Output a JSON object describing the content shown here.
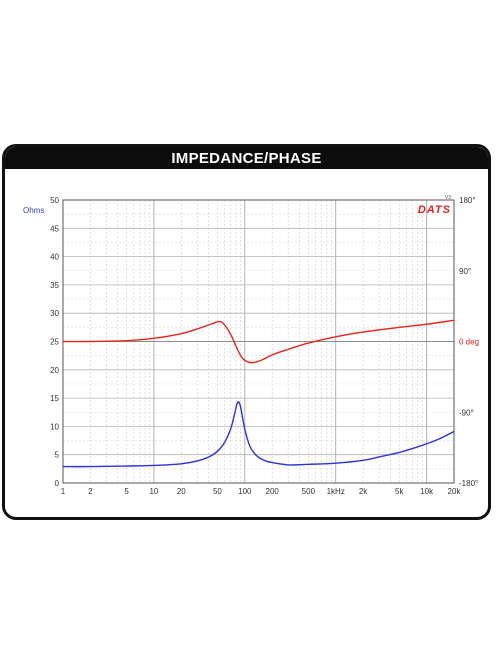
{
  "header": {
    "title": "IMPEDANCE/PHASE"
  },
  "chart_data": {
    "type": "line",
    "xscale": "log",
    "xlim": [
      1,
      20000
    ],
    "x_ticks": [
      {
        "value": 1,
        "label": "1"
      },
      {
        "value": 2,
        "label": "2"
      },
      {
        "value": 5,
        "label": "5"
      },
      {
        "value": 10,
        "label": "10"
      },
      {
        "value": 20,
        "label": "20"
      },
      {
        "value": 50,
        "label": "50"
      },
      {
        "value": 100,
        "label": "100"
      },
      {
        "value": 200,
        "label": "200"
      },
      {
        "value": 500,
        "label": "500"
      },
      {
        "value": 1000,
        "label": "1kHz"
      },
      {
        "value": 2000,
        "label": "2k"
      },
      {
        "value": 5000,
        "label": "5k"
      },
      {
        "value": 10000,
        "label": "10k"
      },
      {
        "value": 20000,
        "label": "20k"
      }
    ],
    "ylabel": "Ohms",
    "ylim": [
      0,
      50
    ],
    "y_ticks": [
      0,
      5,
      10,
      15,
      20,
      25,
      30,
      35,
      40,
      45,
      50
    ],
    "y2lim": [
      -180,
      180
    ],
    "y2_ticks": [
      {
        "value": 180,
        "label": "180°"
      },
      {
        "value": 90,
        "label": "90°"
      },
      {
        "value": 0,
        "label": "0 deg"
      },
      {
        "value": -90,
        "label": "-90°"
      },
      {
        "value": -180,
        "label": "-180°"
      }
    ],
    "brand": "DATS",
    "brand_sup": "V3",
    "grid": true,
    "series": [
      {
        "axis": "left",
        "color": "#2f2fe6",
        "x": [
          1,
          2,
          5,
          10,
          20,
          30,
          40,
          50,
          60,
          70,
          78,
          82,
          86,
          90,
          95,
          100,
          110,
          120,
          140,
          170,
          200,
          300,
          500,
          1000,
          2000,
          3000,
          5000,
          8000,
          12000,
          16000,
          20000
        ],
        "y": [
          2.9,
          2.9,
          3.0,
          3.1,
          3.4,
          3.9,
          4.6,
          5.6,
          7.2,
          9.6,
          12.5,
          14.0,
          14.3,
          13.4,
          11.3,
          9.5,
          7.1,
          5.8,
          4.6,
          3.9,
          3.6,
          3.2,
          3.3,
          3.5,
          4.0,
          4.6,
          5.4,
          6.4,
          7.4,
          8.3,
          9.1
        ]
      },
      {
        "axis": "right",
        "color": "#e8221c",
        "x": [
          1,
          2,
          5,
          10,
          20,
          30,
          40,
          50,
          55,
          60,
          70,
          80,
          90,
          100,
          120,
          150,
          200,
          300,
          500,
          1000,
          2000,
          5000,
          10000,
          20000
        ],
        "y": [
          0,
          0,
          1,
          4,
          10,
          16,
          21,
          25,
          25,
          21,
          9,
          -6,
          -18,
          -24,
          -27,
          -24,
          -17,
          -10,
          -2,
          6,
          12,
          18,
          22,
          27
        ]
      }
    ]
  }
}
